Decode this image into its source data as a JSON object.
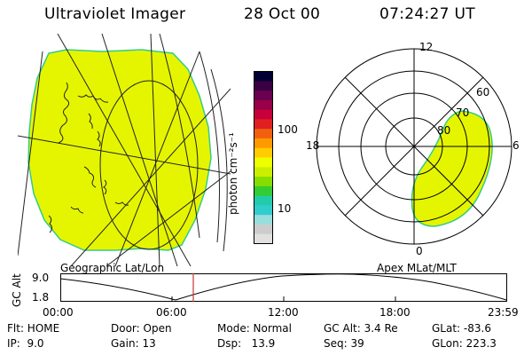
{
  "header": {
    "title": "Ultraviolet Imager",
    "date": "28 Oct 00",
    "time": "07:24:27 UT"
  },
  "colorbar": {
    "unit_label": "photon cm⁻²s⁻¹",
    "ticks": [
      "100",
      "10"
    ],
    "colors": [
      "#000033",
      "#3a0044",
      "#6a0050",
      "#99004a",
      "#c8003a",
      "#e02020",
      "#f06010",
      "#ff9900",
      "#ffcc00",
      "#eeff00",
      "#ccee00",
      "#88dd00",
      "#33cc33",
      "#22ccaa",
      "#33cccc",
      "#99dddd",
      "#cccccc",
      "#e0e0e0"
    ]
  },
  "geo_map": {
    "caption": "Geographic Lat/Lon",
    "fill_color": "#e5f500",
    "edge_color": "#33cc88"
  },
  "polar": {
    "caption": "Apex MLat/MLT",
    "mlt_labels": {
      "top": "12",
      "left": "18",
      "right": "6",
      "bottom": "0"
    },
    "lat_labels": [
      "60",
      "70",
      "80"
    ],
    "fill_color": "#e5f500"
  },
  "altitude_plot": {
    "ylabel": "GC Alt",
    "yticks": [
      "9.0",
      "1.8"
    ],
    "xticks": [
      "00:00",
      "06:00",
      "12:00",
      "18:00",
      "23:59"
    ],
    "marker_color": "#cc3333"
  },
  "info": {
    "row1": {
      "flt": "Flt: HOME",
      "door": "Door: Open",
      "mode": "Mode: Normal",
      "gcalt": "GC Alt: 3.4 Re",
      "glat": "GLat: -83.6"
    },
    "row2": {
      "ip": "IP:  9.0",
      "gain": "Gain: 13",
      "dsp": "Dsp:   13.9",
      "seq": "Seq: 39",
      "glon": "GLon: 223.3"
    }
  }
}
